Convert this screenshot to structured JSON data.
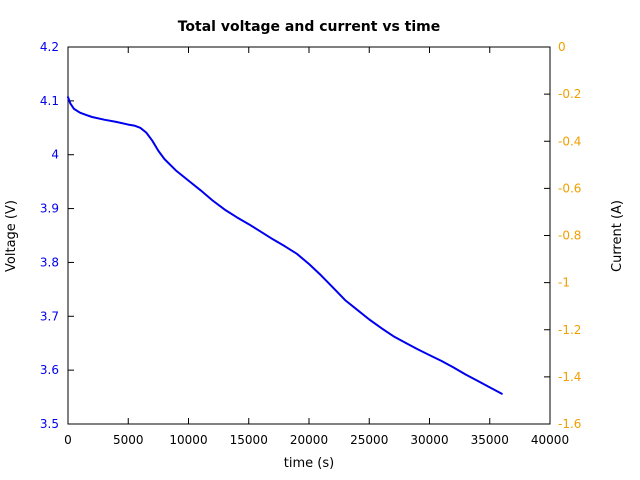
{
  "window": {
    "background": "#ffffff"
  },
  "chart_data": {
    "type": "line",
    "title": "Total voltage and current vs time",
    "xlabel": "time (s)",
    "ylabel": "Voltage (V)",
    "y2label": "Current (A)",
    "xlim": [
      0,
      40000
    ],
    "ylim": [
      3.5,
      4.2
    ],
    "y2lim": [
      -1.6,
      0
    ],
    "grid": false,
    "legend": "none",
    "x_ticks": [
      0,
      5000,
      10000,
      15000,
      20000,
      25000,
      30000,
      35000,
      40000
    ],
    "x_tick_labels": [
      "0",
      "5000",
      "10000",
      "15000",
      "20000",
      "25000",
      "30000",
      "35000",
      "40000"
    ],
    "y_ticks": [
      3.5,
      3.6,
      3.7,
      3.8,
      3.9,
      4.0,
      4.1,
      4.2
    ],
    "y_tick_labels": [
      "3.5",
      "3.6",
      "3.7",
      "3.8",
      "3.9",
      "4",
      "4.1",
      "4.2"
    ],
    "y2_ticks": [
      -1.6,
      -1.4,
      -1.2,
      -1.0,
      -0.8,
      -0.6,
      -0.4,
      -0.2,
      0
    ],
    "y2_tick_labels": [
      "-1.6",
      "-1.4",
      "-1.2",
      "-1",
      "-0.8",
      "-0.6",
      "-0.4",
      "-0.2",
      "0"
    ],
    "axis_colors": {
      "y": "#0000ee",
      "y2": "#f0a000",
      "frame": "#000000"
    },
    "series": [
      {
        "name": "total voltage",
        "axis": "y1",
        "color": "#0000ee",
        "line_width": 2,
        "x": [
          0,
          200,
          500,
          1000,
          1500,
          2000,
          3000,
          4000,
          5000,
          5500,
          6000,
          6500,
          7000,
          7500,
          8000,
          9000,
          10000,
          11000,
          12000,
          13000,
          14000,
          15000,
          16000,
          17000,
          18000,
          19000,
          20000,
          21000,
          22000,
          23000,
          24000,
          25000,
          26000,
          27000,
          28000,
          29000,
          30000,
          31000,
          32000,
          33000,
          34000,
          35000,
          36000
        ],
        "y": [
          4.107,
          4.095,
          4.085,
          4.078,
          4.074,
          4.07,
          4.065,
          4.061,
          4.056,
          4.054,
          4.05,
          4.041,
          4.026,
          4.007,
          3.992,
          3.97,
          3.952,
          3.934,
          3.915,
          3.898,
          3.884,
          3.871,
          3.857,
          3.843,
          3.83,
          3.816,
          3.797,
          3.776,
          3.753,
          3.73,
          3.712,
          3.694,
          3.678,
          3.663,
          3.651,
          3.639,
          3.628,
          3.617,
          3.605,
          3.592,
          3.58,
          3.568,
          3.556
        ]
      }
    ]
  }
}
